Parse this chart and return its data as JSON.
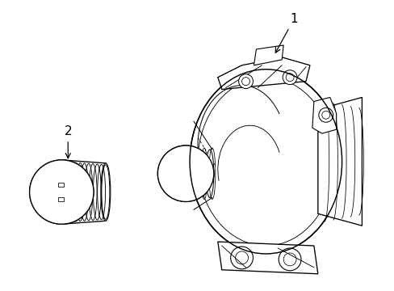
{
  "background_color": "#ffffff",
  "line_color": "#000000",
  "line_width": 0.8,
  "label1_text": "1",
  "label2_text": "2",
  "fig_width": 4.89,
  "fig_height": 3.6,
  "dpi": 100
}
